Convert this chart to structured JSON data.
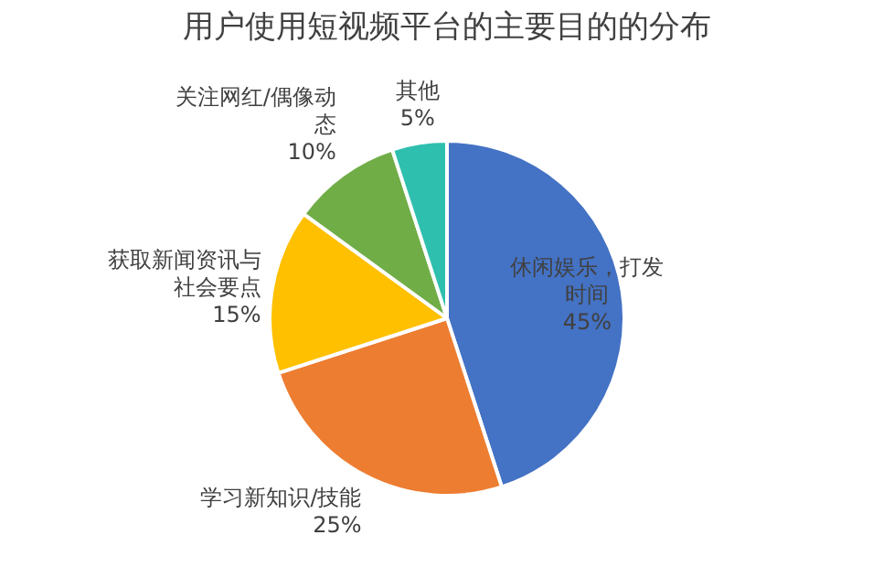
{
  "chart_data": {
    "type": "pie",
    "title": "用户使用短视频平台的主要目的的分布",
    "categories": [
      "休闲娱乐，打发时间",
      "学习新知识/技能",
      "获取新闻资讯与社会要点",
      "关注网红/偶像动态",
      "其他"
    ],
    "values": [
      45,
      25,
      15,
      10,
      5
    ],
    "colors": [
      "#4472c4",
      "#ed7d31",
      "#ffc000",
      "#70ad47",
      "#2fbfae"
    ],
    "value_labels": [
      "45%",
      "25%",
      "15%",
      "10%",
      "5%"
    ],
    "legend": false
  }
}
